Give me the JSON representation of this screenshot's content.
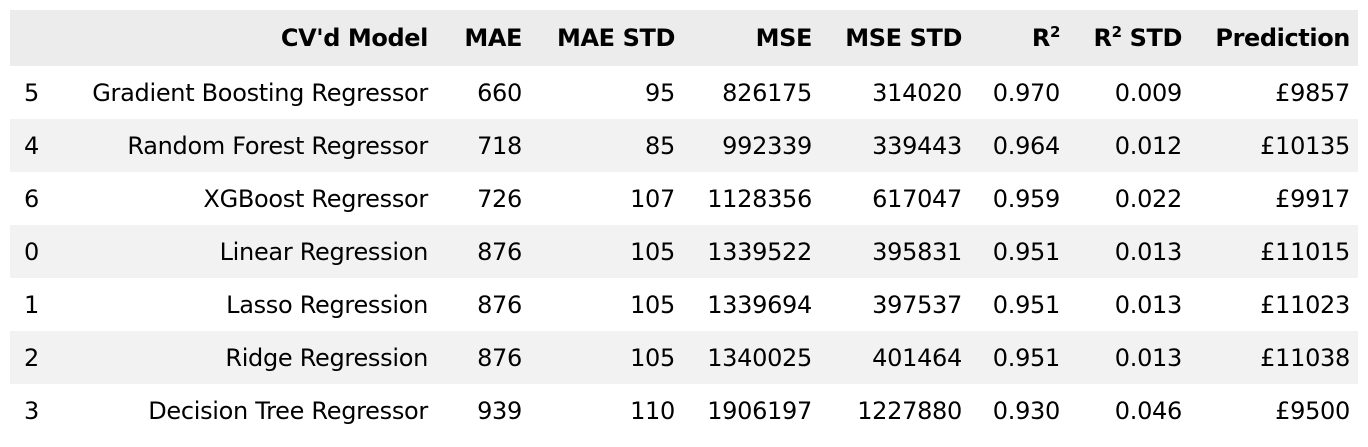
{
  "table": {
    "headers": {
      "index": "",
      "model": "CV'd Model",
      "mae": "MAE",
      "mae_std": "MAE STD",
      "mse": "MSE",
      "mse_std": "MSE STD",
      "r2_base": "R",
      "r2_sup": "2",
      "r2_std_base": "R",
      "r2_std_sup": "2",
      "r2_std_suffix": " STD",
      "prediction": "Prediction"
    },
    "rows": [
      {
        "index": "5",
        "model": "Gradient Boosting Regressor",
        "mae": "660",
        "mae_std": "95",
        "mse": "826175",
        "mse_std": "314020",
        "r2": "0.970",
        "r2_std": "0.009",
        "prediction": "£9857"
      },
      {
        "index": "4",
        "model": "Random Forest Regressor",
        "mae": "718",
        "mae_std": "85",
        "mse": "992339",
        "mse_std": "339443",
        "r2": "0.964",
        "r2_std": "0.012",
        "prediction": "£10135"
      },
      {
        "index": "6",
        "model": "XGBoost Regressor",
        "mae": "726",
        "mae_std": "107",
        "mse": "1128356",
        "mse_std": "617047",
        "r2": "0.959",
        "r2_std": "0.022",
        "prediction": "£9917"
      },
      {
        "index": "0",
        "model": "Linear Regression",
        "mae": "876",
        "mae_std": "105",
        "mse": "1339522",
        "mse_std": "395831",
        "r2": "0.951",
        "r2_std": "0.013",
        "prediction": "£11015"
      },
      {
        "index": "1",
        "model": "Lasso Regression",
        "mae": "876",
        "mae_std": "105",
        "mse": "1339694",
        "mse_std": "397537",
        "r2": "0.951",
        "r2_std": "0.013",
        "prediction": "£11023"
      },
      {
        "index": "2",
        "model": "Ridge Regression",
        "mae": "876",
        "mae_std": "105",
        "mse": "1340025",
        "mse_std": "401464",
        "r2": "0.951",
        "r2_std": "0.013",
        "prediction": "£11038"
      },
      {
        "index": "3",
        "model": "Decision Tree Regressor",
        "mae": "939",
        "mae_std": "110",
        "mse": "1906197",
        "mse_std": "1227880",
        "r2": "0.930",
        "r2_std": "0.046",
        "prediction": "£9500"
      }
    ]
  },
  "colors": {
    "header_bg": "#ececec",
    "row_even_bg": "#f2f2f2",
    "row_odd_bg": "#ffffff",
    "text": "#000000"
  }
}
